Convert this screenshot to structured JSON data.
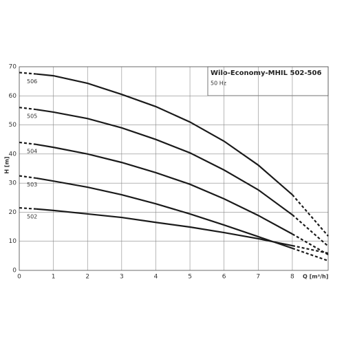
{
  "chart_data": {
    "type": "line",
    "title": "Wilo-Economy-MHIL 502-506",
    "subtitle": "50 Hz",
    "x_label": "Q [m³/h]",
    "y_label": "H [m]",
    "x": [
      0,
      0.5,
      1,
      2,
      3,
      4,
      5,
      6,
      7,
      8,
      9.05
    ],
    "series": [
      {
        "name": "506",
        "color": "#1a1a1a",
        "values": [
          68,
          67.5,
          66.9,
          64.3,
          60.5,
          56.3,
          51,
          44.4,
          36.2,
          26,
          11.8
        ]
      },
      {
        "name": "505",
        "color": "#1a1a1a",
        "values": [
          56,
          55.3,
          54.4,
          52.2,
          49,
          45,
          40.4,
          34.5,
          27.7,
          19.1,
          8.3
        ]
      },
      {
        "name": "504",
        "color": "#1a1a1a",
        "values": [
          44,
          43.3,
          42.3,
          40,
          37.1,
          33.6,
          29.6,
          24.6,
          18.9,
          12.5,
          5.4
        ]
      },
      {
        "name": "503",
        "color": "#1a1a1a",
        "values": [
          32.5,
          31.7,
          30.7,
          28.6,
          26,
          22.9,
          19.4,
          15.6,
          11.6,
          7.6,
          3.3
        ]
      },
      {
        "name": "502",
        "color": "#1a1a1a",
        "values": [
          21.5,
          21.1,
          20.6,
          19.4,
          18.2,
          16.5,
          14.9,
          13,
          10.9,
          8.5,
          5.9
        ]
      }
    ],
    "dashed_below_x": 0.5,
    "dashed_above_x": 8,
    "xlim": [
      0,
      9.05
    ],
    "ylim": [
      0,
      70
    ],
    "xticks": [
      0,
      1,
      2,
      3,
      4,
      5,
      6,
      7,
      8
    ],
    "yticks": [
      0,
      10,
      20,
      30,
      40,
      50,
      60,
      70
    ],
    "grid": true
  }
}
